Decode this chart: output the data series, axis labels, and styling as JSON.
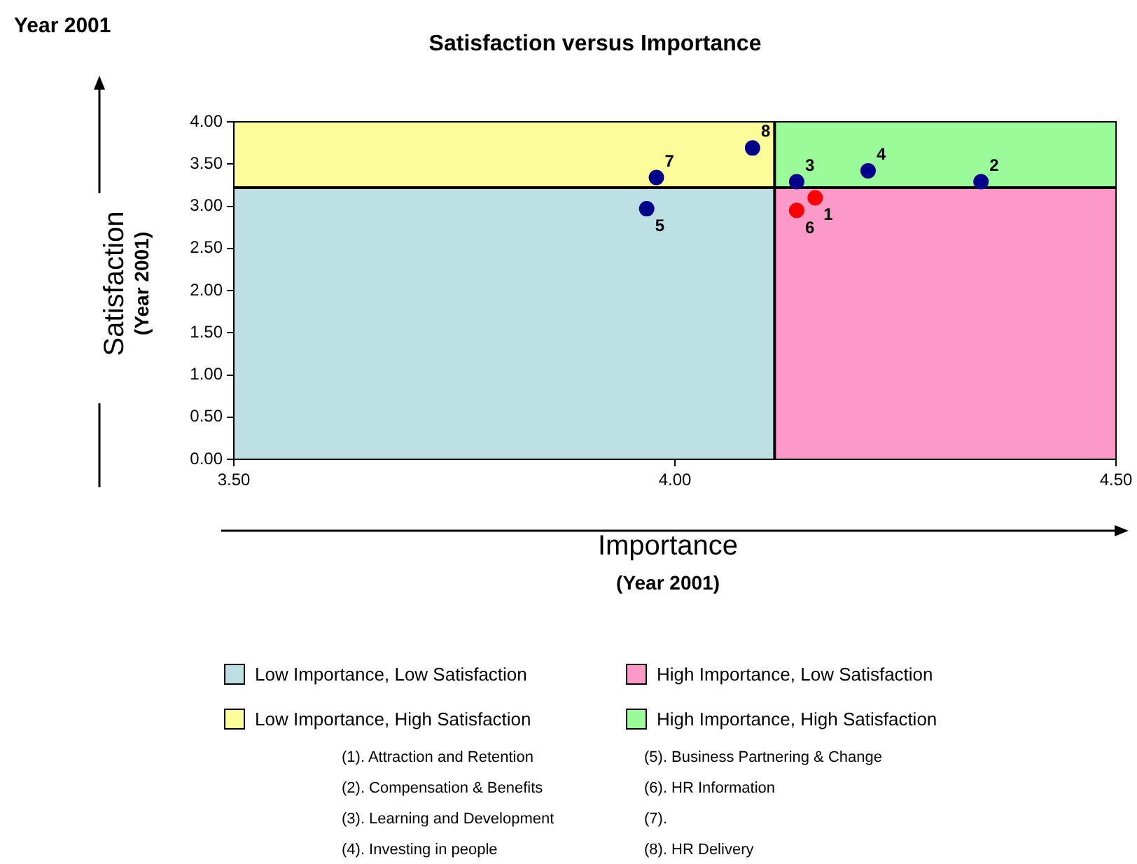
{
  "chart_data": {
    "type": "scatter",
    "title": "Satisfaction versus Importance",
    "xlabel": "Importance\n(Year 2001)",
    "ylabel": "Satisfaction\n(Year 2001)",
    "xlim": [
      3.5,
      4.5
    ],
    "xticks": [
      {
        "value": 3.5,
        "label": "3.50"
      },
      {
        "value": 4,
        "label": "4.00"
      },
      {
        "value": 4.5,
        "label": "4.50"
      }
    ],
    "ylim": [
      0,
      4
    ],
    "yticks": [
      {
        "value": 0,
        "label": "0.00"
      },
      {
        "value": 0.5,
        "label": "0.50"
      },
      {
        "value": 1,
        "label": "1.00"
      },
      {
        "value": 1.5,
        "label": "1.50"
      },
      {
        "value": 2,
        "label": "2.00"
      },
      {
        "value": 2.5,
        "label": "2.50"
      },
      {
        "value": 3,
        "label": "3.00"
      },
      {
        "value": 3.5,
        "label": "3.50"
      },
      {
        "value": 4,
        "label": "4.00"
      }
    ],
    "series": [
      {
        "color": "#00008b",
        "x": [
          4.347,
          4.138,
          4.219,
          3.968,
          3.979,
          4.088
        ],
        "values": [
          3.29,
          3.29,
          3.42,
          2.97,
          3.34,
          3.69
        ]
      },
      {
        "color": "#ff0000",
        "x": [
          4.159,
          4.138
        ],
        "values": [
          3.1,
          2.95
        ]
      }
    ],
    "ref_lines": [
      {
        "axis": "x",
        "value": 4.113
      },
      {
        "axis": "y",
        "value": 3.22
      }
    ],
    "grid": false,
    "marker": "circle",
    "annotations": [
      "Year 2001",
      {
        "text": "1",
        "x": 4.159,
        "y": 3.1
      },
      {
        "text": "2",
        "x": 4.347,
        "y": 3.29
      },
      {
        "text": "3",
        "x": 4.138,
        "y": 3.29
      },
      {
        "text": "4",
        "x": 4.219,
        "y": 3.42
      },
      {
        "text": "5",
        "x": 3.968,
        "y": 2.97
      },
      {
        "text": "6",
        "x": 4.138,
        "y": 2.95
      },
      {
        "text": "7",
        "x": 3.979,
        "y": 3.34
      },
      {
        "text": "8",
        "x": 4.088,
        "y": 3.69
      },
      "Low Importance, Low Satisfaction",
      "High Importance, Low Satisfaction",
      "Low Importance, High Satisfaction",
      "High Importance, High Satisfaction",
      "(1). Attraction and Retention",
      "(2). Compensation & Benefits",
      "(3). Learning and Development",
      "(4). Investing in people",
      "(5). Business Partnering & Change",
      "(6). HR Information",
      "(7).",
      "(8). HR Delivery"
    ]
  }
}
